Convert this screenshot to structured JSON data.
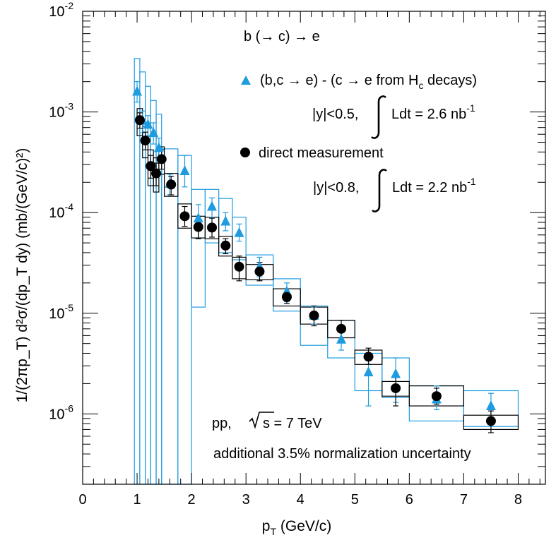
{
  "chart_data": {
    "type": "scatter",
    "x_axis": {
      "label_main": "p",
      "label_sub": "T",
      "label_tail": " (GeV/c)",
      "range": [
        0,
        8.5
      ],
      "ticks": [
        "0",
        "1",
        "2",
        "3",
        "4",
        "5",
        "6",
        "7",
        "8"
      ],
      "scale": "linear"
    },
    "y_axis": {
      "label": "1/(2πp_T) d²σ/(dp_T dy) (mb/(GeV/c)²)",
      "range": [
        2e-07,
        0.01
      ],
      "scale": "log",
      "ticks": [
        {
          "base": "10",
          "exp": "-2"
        },
        {
          "base": "10",
          "exp": "-3"
        },
        {
          "base": "10",
          "exp": "-4"
        },
        {
          "base": "10",
          "exp": "-5"
        },
        {
          "base": "10",
          "exp": "-6"
        }
      ]
    },
    "legend": {
      "title": "b (→ c) → e",
      "entry1": {
        "label_a": "(b,c → e) - (c → e from H",
        "label_sub": "c",
        "label_b": " decays)",
        "cond": "|y|<0.5,",
        "lumi": "Ldt = 2.6 nb",
        "lumi_exp": "-1"
      },
      "entry2": {
        "label": "direct measurement",
        "cond": "|y|<0.8,",
        "lumi": "Ldt = 2.2 nb",
        "lumi_exp": "-1"
      }
    },
    "annotations": {
      "energy_a": "pp, ",
      "energy_b": "s = 7 TeV",
      "norm": "additional 3.5% normalization uncertainty"
    },
    "colors": {
      "blue": "#1f9ce0",
      "black": "#000000"
    },
    "series": [
      {
        "name": "(b,c → e) - (c → e from H_c decays)",
        "marker": "triangle",
        "color": "#1f9ce0",
        "points": [
          {
            "x": 1.0,
            "y": 0.0016,
            "xlo": 0.95,
            "xhi": 1.05,
            "elo": 0.00125,
            "ehi": 0.002,
            "slo": 2e-07,
            "shi": 0.0034
          },
          {
            "x": 1.1,
            "y": 0.00082,
            "xlo": 1.05,
            "xhi": 1.15,
            "elo": 0.00062,
            "ehi": 0.00102,
            "slo": 2e-07,
            "shi": 0.0025
          },
          {
            "x": 1.2,
            "y": 0.00075,
            "xlo": 1.15,
            "xhi": 1.25,
            "elo": 0.00058,
            "ehi": 0.00092,
            "slo": 2e-07,
            "shi": 0.0018
          },
          {
            "x": 1.3,
            "y": 0.00062,
            "xlo": 1.25,
            "xhi": 1.35,
            "elo": 0.00048,
            "ehi": 0.00078,
            "slo": 2e-07,
            "shi": 0.0013
          },
          {
            "x": 1.4,
            "y": 0.00044,
            "xlo": 1.35,
            "xhi": 1.45,
            "elo": 0.00033,
            "ehi": 0.00055,
            "slo": 2e-07,
            "shi": 0.00095
          },
          {
            "x": 1.6,
            "y": 0.000195,
            "xlo": 1.45,
            "xhi": 1.75,
            "elo": 0.00015,
            "ehi": 0.00024,
            "slo": 2e-07,
            "shi": 0.00043
          },
          {
            "x": 1.875,
            "y": 0.00026,
            "xlo": 1.75,
            "xhi": 2.0,
            "elo": 0.00018,
            "ehi": 0.00037,
            "slo": 2e-07,
            "shi": 0.00037
          },
          {
            "x": 2.125,
            "y": 8.8e-05,
            "xlo": 2.0,
            "xhi": 2.25,
            "elo": 5.5e-05,
            "ehi": 0.00012,
            "slo": 1.15e-05,
            "shi": 0.00017
          },
          {
            "x": 2.375,
            "y": 0.000115,
            "xlo": 2.25,
            "xhi": 2.5,
            "elo": 9e-05,
            "ehi": 0.00014,
            "slo": 5e-05,
            "shi": 0.00017
          },
          {
            "x": 2.625,
            "y": 8.2e-05,
            "xlo": 2.5,
            "xhi": 2.75,
            "elo": 6.6e-05,
            "ehi": 0.0001,
            "slo": 4e-05,
            "shi": 0.000138
          },
          {
            "x": 2.875,
            "y": 6.3e-05,
            "xlo": 2.75,
            "xhi": 3.0,
            "elo": 5.2e-05,
            "ehi": 7.7e-05,
            "slo": 3.4e-05,
            "shi": 9e-05
          },
          {
            "x": 3.25,
            "y": 2.9e-05,
            "xlo": 3.0,
            "xhi": 3.5,
            "elo": 2.3e-05,
            "ehi": 3.6e-05,
            "slo": 1.9e-05,
            "shi": 3.8e-05
          },
          {
            "x": 3.75,
            "y": 1.65e-05,
            "xlo": 3.5,
            "xhi": 4.0,
            "elo": 1.3e-05,
            "ehi": 2e-05,
            "slo": 1.05e-05,
            "shi": 2.2e-05
          },
          {
            "x": 4.25,
            "y": 9.5e-06,
            "xlo": 4.0,
            "xhi": 4.5,
            "elo": 7.8e-06,
            "ehi": 1.15e-05,
            "slo": 4.8e-06,
            "shi": 1.18e-05
          },
          {
            "x": 4.75,
            "y": 5.5e-06,
            "xlo": 4.5,
            "xhi": 5.0,
            "elo": 4.3e-06,
            "ehi": 7.2e-06,
            "slo": 3.6e-06,
            "shi": 8.5e-06
          },
          {
            "x": 5.25,
            "y": 2.6e-06,
            "xlo": 5.0,
            "xhi": 5.5,
            "elo": 1.2e-06,
            "ehi": 3.8e-06,
            "slo": 1.7e-06,
            "shi": 4e-06
          },
          {
            "x": 5.75,
            "y": 2.5e-06,
            "xlo": 5.5,
            "xhi": 6.0,
            "elo": 1.3e-06,
            "ehi": 3.6e-06,
            "slo": 1.45e-06,
            "shi": 3.6e-06
          },
          {
            "x": 6.5,
            "y": 1.4e-06,
            "xlo": 6.0,
            "xhi": 7.0,
            "elo": 1.1e-06,
            "ehi": 1.9e-06,
            "slo": 8.5e-07,
            "shi": 1.9e-06
          },
          {
            "x": 7.5,
            "y": 1.2e-06,
            "xlo": 7.0,
            "xhi": 8.0,
            "elo": 8.5e-07,
            "ehi": 1.6e-06,
            "slo": 7.5e-07,
            "shi": 1.7e-06
          }
        ]
      },
      {
        "name": "direct measurement",
        "marker": "circle",
        "color": "#000000",
        "points": [
          {
            "x": 1.05,
            "y": 0.00083,
            "xlo": 1.0,
            "xhi": 1.1,
            "elo": 0.00069,
            "ehi": 0.00098,
            "slo": 0.00058,
            "shi": 0.00108
          },
          {
            "x": 1.15,
            "y": 0.00052,
            "xlo": 1.1,
            "xhi": 1.2,
            "elo": 0.00042,
            "ehi": 0.00063,
            "slo": 0.00035,
            "shi": 0.00072
          },
          {
            "x": 1.25,
            "y": 0.00029,
            "xlo": 1.2,
            "xhi": 1.3,
            "elo": 0.00022,
            "ehi": 0.00037,
            "slo": 0.000185,
            "shi": 0.00042
          },
          {
            "x": 1.35,
            "y": 0.000245,
            "xlo": 1.3,
            "xhi": 1.4,
            "elo": 0.000185,
            "ehi": 0.00031,
            "slo": 0.00016,
            "shi": 0.00035
          },
          {
            "x": 1.45,
            "y": 0.00034,
            "xlo": 1.4,
            "xhi": 1.5,
            "elo": 0.00027,
            "ehi": 0.00042,
            "slo": 0.00024,
            "shi": 0.00045
          },
          {
            "x": 1.625,
            "y": 0.00019,
            "xlo": 1.5,
            "xhi": 1.75,
            "elo": 0.00015,
            "ehi": 0.00023,
            "slo": 0.000145,
            "shi": 0.000245
          },
          {
            "x": 1.875,
            "y": 9.2e-05,
            "xlo": 1.75,
            "xhi": 2.0,
            "elo": 7.3e-05,
            "ehi": 0.000115,
            "slo": 7e-05,
            "shi": 0.000122
          },
          {
            "x": 2.125,
            "y": 7.2e-05,
            "xlo": 2.0,
            "xhi": 2.25,
            "elo": 5.5e-05,
            "ehi": 9.2e-05,
            "slo": 5.6e-05,
            "shi": 9.2e-05
          },
          {
            "x": 2.375,
            "y": 7.1e-05,
            "xlo": 2.25,
            "xhi": 2.5,
            "elo": 5.7e-05,
            "ehi": 8.8e-05,
            "slo": 5.5e-05,
            "shi": 9e-05
          },
          {
            "x": 2.625,
            "y": 4.7e-05,
            "xlo": 2.5,
            "xhi": 2.75,
            "elo": 3.9e-05,
            "ehi": 5.5e-05,
            "slo": 3.7e-05,
            "shi": 5.8e-05
          },
          {
            "x": 2.875,
            "y": 2.9e-05,
            "xlo": 2.75,
            "xhi": 3.0,
            "elo": 2.1e-05,
            "ehi": 3.7e-05,
            "slo": 2.2e-05,
            "shi": 3.6e-05
          },
          {
            "x": 3.25,
            "y": 2.6e-05,
            "xlo": 3.0,
            "xhi": 3.5,
            "elo": 2.1e-05,
            "ehi": 3.2e-05,
            "slo": 2.15e-05,
            "shi": 3.05e-05
          },
          {
            "x": 3.75,
            "y": 1.45e-05,
            "xlo": 3.5,
            "xhi": 4.0,
            "elo": 1.25e-05,
            "ehi": 1.65e-05,
            "slo": 1.18e-05,
            "shi": 1.75e-05
          },
          {
            "x": 4.25,
            "y": 9.5e-06,
            "xlo": 4.0,
            "xhi": 4.5,
            "elo": 7.5e-06,
            "ehi": 1.18e-05,
            "slo": 7.8e-06,
            "shi": 1.15e-05
          },
          {
            "x": 4.75,
            "y": 7e-06,
            "xlo": 4.5,
            "xhi": 5.0,
            "elo": 5.7e-06,
            "ehi": 8.5e-06,
            "slo": 5.7e-06,
            "shi": 8.5e-06
          },
          {
            "x": 5.25,
            "y": 3.7e-06,
            "xlo": 5.0,
            "xhi": 5.5,
            "elo": 3.1e-06,
            "ehi": 4.5e-06,
            "slo": 3.1e-06,
            "shi": 4.3e-06
          },
          {
            "x": 5.75,
            "y": 1.8e-06,
            "xlo": 5.5,
            "xhi": 6.0,
            "elo": 1.2e-06,
            "ehi": 2.4e-06,
            "slo": 1.5e-06,
            "shi": 2.1e-06
          },
          {
            "x": 6.5,
            "y": 1.5e-06,
            "xlo": 6.0,
            "xhi": 7.0,
            "elo": 1.25e-06,
            "ehi": 1.8e-06,
            "slo": 1.2e-06,
            "shi": 1.9e-06
          },
          {
            "x": 7.5,
            "y": 8.5e-07,
            "xlo": 7.0,
            "xhi": 8.0,
            "elo": 6.5e-07,
            "ehi": 1.07e-06,
            "slo": 7e-07,
            "shi": 9.7e-07
          }
        ]
      }
    ]
  }
}
